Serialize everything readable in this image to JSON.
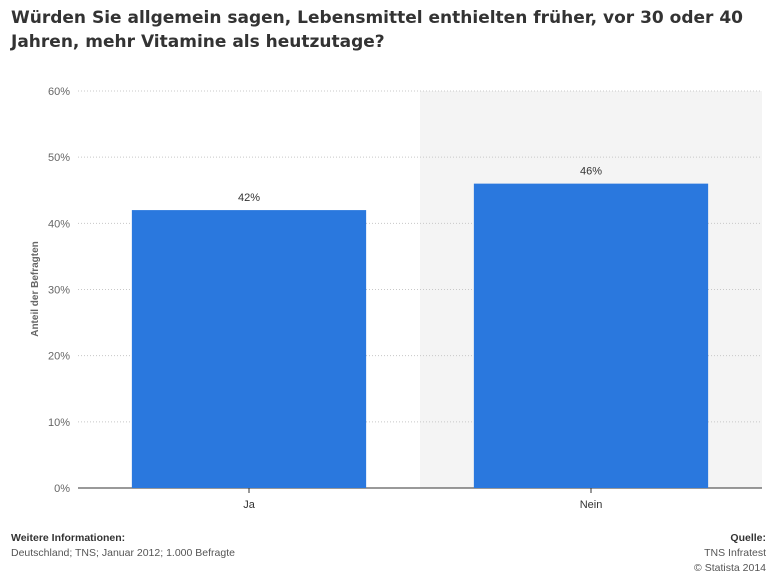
{
  "title": "Würden Sie allgemein sagen, Lebensmittel enthielten früher, vor 30 oder 40 Jahren, mehr Vitamine als heutzutage?",
  "chart_data": {
    "type": "bar",
    "categories": [
      "Ja",
      "Nein"
    ],
    "values": [
      42,
      46
    ],
    "value_labels": [
      "42%",
      "46%"
    ],
    "ylabel": "Anteil der Befragten",
    "xlabel": "",
    "ylim": [
      0,
      60
    ],
    "yticks": [
      0,
      10,
      20,
      30,
      40,
      50,
      60
    ],
    "ytick_labels": [
      "0%",
      "10%",
      "20%",
      "30%",
      "40%",
      "50%",
      "60%"
    ],
    "grid": true,
    "bar_color": "#2a78de",
    "highlight_background_color": "#f4f4f4"
  },
  "footer": {
    "info_heading": "Weitere Informationen:",
    "info_text": "Deutschland; TNS; Januar 2012; 1.000 Befragte",
    "source_heading": "Quelle:",
    "source_text": "TNS Infratest",
    "copyright": "© Statista 2014"
  }
}
